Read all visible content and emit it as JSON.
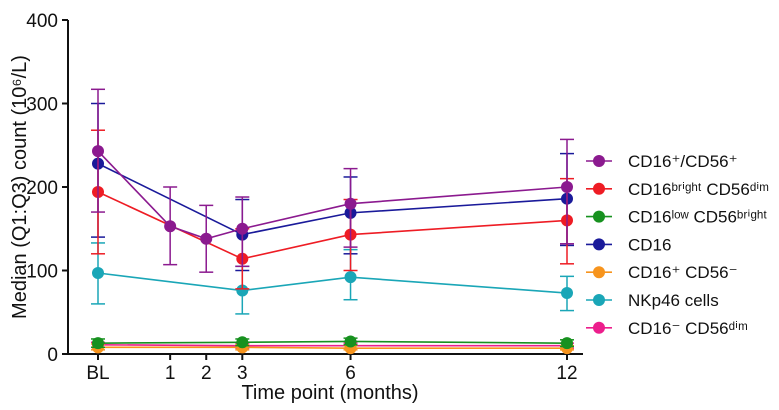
{
  "chart_data": {
    "type": "line",
    "xlabel": "Time point (months)",
    "ylabel": "Median (Q1:Q3) count (10⁶/L)",
    "ylim": [
      0,
      400
    ],
    "yticks": [
      0,
      100,
      200,
      300,
      400
    ],
    "xlim": [
      -1.5,
      12.6
    ],
    "xticks": [
      {
        "value": -1,
        "label": "BL"
      },
      {
        "value": 1,
        "label": "1"
      },
      {
        "value": 2,
        "label": "2"
      },
      {
        "value": 3,
        "label": "3"
      },
      {
        "value": 6,
        "label": "6"
      },
      {
        "value": 12,
        "label": "12"
      }
    ],
    "legend_position": "right",
    "grid": false,
    "series": [
      {
        "name": "CD16⁺/CD56⁺",
        "color": "#8B1A8F",
        "points": [
          {
            "x": -1,
            "y": 243,
            "lo": 170,
            "hi": 317
          },
          {
            "x": 1,
            "y": 153,
            "lo": 107,
            "hi": 200
          },
          {
            "x": 2,
            "y": 138,
            "lo": 98,
            "hi": 178
          },
          {
            "x": 3,
            "y": 150,
            "lo": 105,
            "hi": 188
          },
          {
            "x": 6,
            "y": 180,
            "lo": 128,
            "hi": 222
          },
          {
            "x": 12,
            "y": 200,
            "lo": 132,
            "hi": 257
          }
        ]
      },
      {
        "name": "CD16ᵇʳⁱᵍʰᵗ CD56ᵈⁱᵐ",
        "color": "#EE1C24",
        "points": [
          {
            "x": -1,
            "y": 194,
            "lo": 120,
            "hi": 268
          },
          {
            "x": 3,
            "y": 114,
            "lo": 78,
            "hi": 150
          },
          {
            "x": 6,
            "y": 143,
            "lo": 100,
            "hi": 185
          },
          {
            "x": 12,
            "y": 160,
            "lo": 108,
            "hi": 210
          }
        ]
      },
      {
        "name": "CD16ˡᵒʷ CD56ᵇʳⁱᵍʰᵗ",
        "color": "#17911F",
        "points": [
          {
            "x": -1,
            "y": 13,
            "lo": 8,
            "hi": 18
          },
          {
            "x": 3,
            "y": 14,
            "lo": 10,
            "hi": 18
          },
          {
            "x": 6,
            "y": 15,
            "lo": 11,
            "hi": 19
          },
          {
            "x": 12,
            "y": 13,
            "lo": 9,
            "hi": 17
          }
        ]
      },
      {
        "name": "CD16",
        "color": "#1A1A9A",
        "points": [
          {
            "x": -1,
            "y": 228,
            "lo": 140,
            "hi": 300
          },
          {
            "x": 3,
            "y": 143,
            "lo": 100,
            "hi": 185
          },
          {
            "x": 6,
            "y": 169,
            "lo": 120,
            "hi": 212
          },
          {
            "x": 12,
            "y": 186,
            "lo": 130,
            "hi": 240
          }
        ]
      },
      {
        "name": "CD16⁺ CD56⁻",
        "color": "#F7941D",
        "points": [
          {
            "x": -1,
            "y": 8,
            "lo": 5,
            "hi": 12
          },
          {
            "x": 3,
            "y": 8,
            "lo": 5,
            "hi": 11
          },
          {
            "x": 6,
            "y": 7,
            "lo": 5,
            "hi": 10
          },
          {
            "x": 12,
            "y": 7,
            "lo": 5,
            "hi": 10
          }
        ]
      },
      {
        "name": "NKp46 cells",
        "color": "#1AA6B7",
        "points": [
          {
            "x": -1,
            "y": 97,
            "lo": 60,
            "hi": 133
          },
          {
            "x": 3,
            "y": 76,
            "lo": 48,
            "hi": 105
          },
          {
            "x": 6,
            "y": 92,
            "lo": 65,
            "hi": 125
          },
          {
            "x": 12,
            "y": 73,
            "lo": 52,
            "hi": 93
          }
        ]
      },
      {
        "name": "CD16⁻ CD56ᵈⁱᵐ",
        "color": "#EC1E8C",
        "points": [
          {
            "x": -1,
            "y": 11,
            "lo": 8,
            "hi": 14
          },
          {
            "x": 3,
            "y": 10,
            "lo": 7,
            "hi": 13
          },
          {
            "x": 6,
            "y": 10,
            "lo": 7,
            "hi": 13
          },
          {
            "x": 12,
            "y": 10,
            "lo": 7,
            "hi": 13
          }
        ]
      }
    ]
  }
}
